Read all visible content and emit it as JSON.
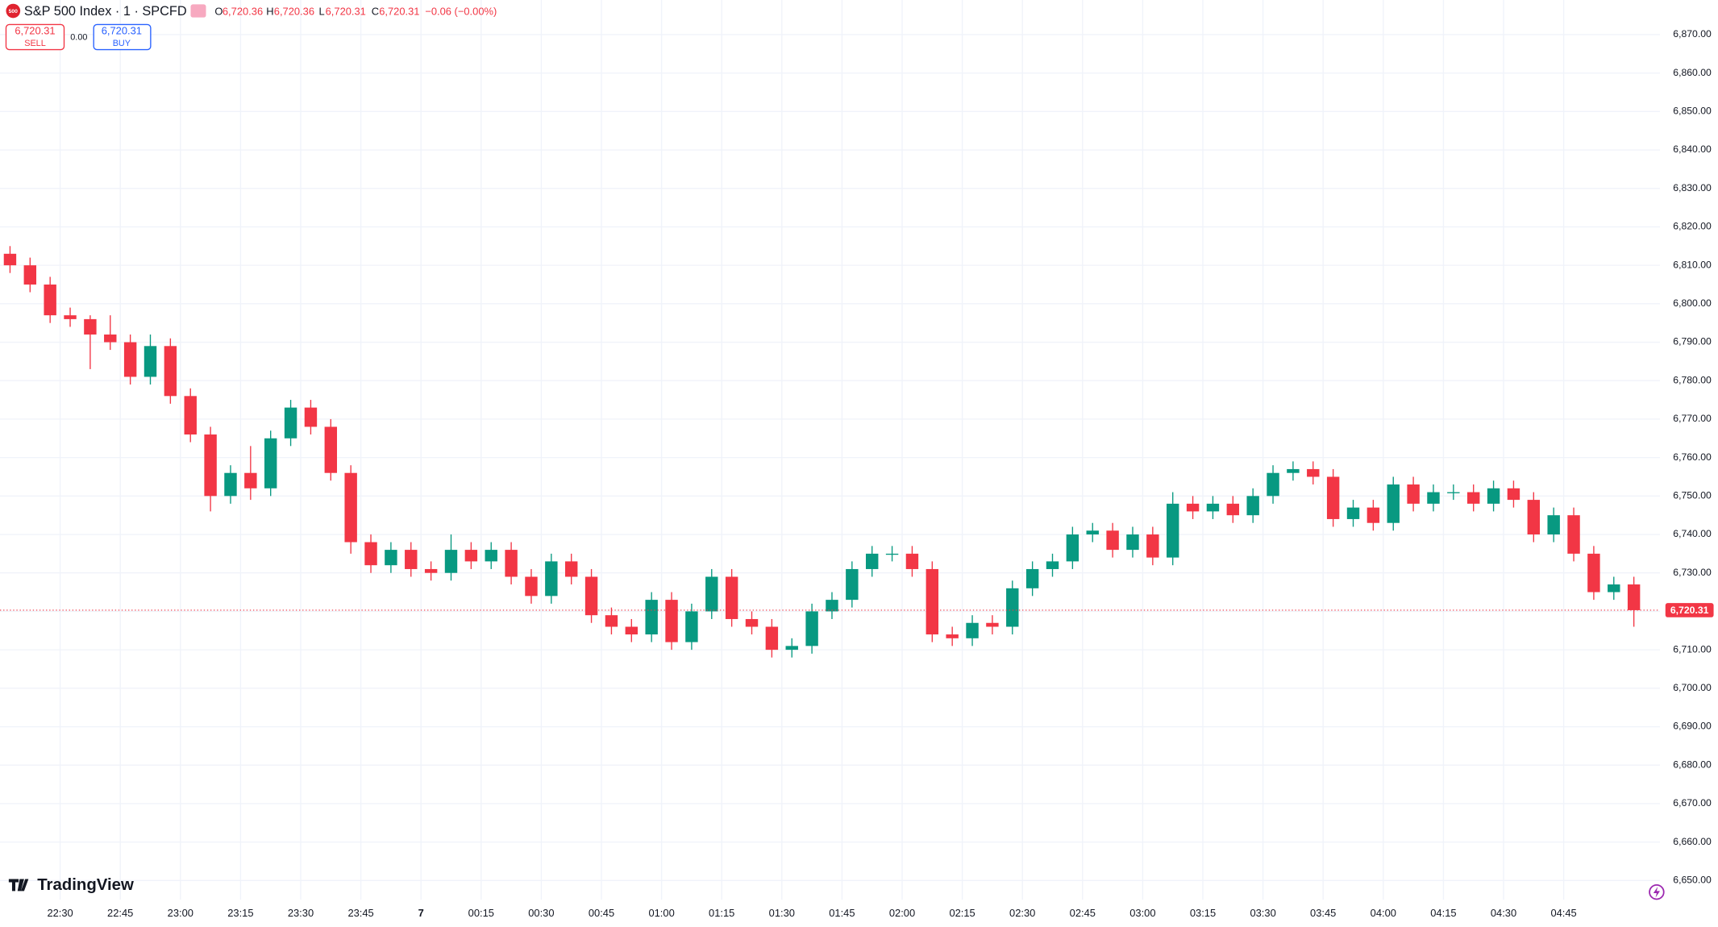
{
  "header": {
    "logo": "500",
    "title": "S&P 500 Index · 1 · SPCFD",
    "o_label": "O",
    "o_value": "6,720.36",
    "h_label": "H",
    "h_value": "6,720.36",
    "l_label": "L",
    "l_value": "6,720.31",
    "c_label": "C",
    "c_value": "6,720.31",
    "change": "−0.06 (−0.00%)",
    "sell_price": "6,720.31",
    "sell_label": "SELL",
    "spread": "0.00",
    "buy_price": "6,720.31",
    "buy_label": "BUY"
  },
  "branding": "TradingView",
  "chart_data": {
    "type": "candlestick",
    "up_color": "#089981",
    "down_color": "#f23645",
    "grid": true,
    "xlim": [
      "22:15",
      "05:09"
    ],
    "ylim": [
      6645,
      6879
    ],
    "x": [
      "22:15",
      "22:20",
      "22:25",
      "22:30",
      "22:35",
      "22:40",
      "22:45",
      "22:50",
      "22:55",
      "23:00",
      "23:05",
      "23:10",
      "23:15",
      "23:20",
      "23:25",
      "23:30",
      "23:35",
      "23:40",
      "23:45",
      "23:50",
      "23:55",
      "00:00",
      "00:05",
      "00:10",
      "00:15",
      "00:20",
      "00:25",
      "00:30",
      "00:35",
      "00:40",
      "00:45",
      "00:50",
      "00:55",
      "01:00",
      "01:05",
      "01:10",
      "01:15",
      "01:20",
      "01:25",
      "01:30",
      "01:35",
      "01:40",
      "01:45",
      "01:50",
      "01:55",
      "02:00",
      "02:05",
      "02:10",
      "02:15",
      "02:20",
      "02:25",
      "02:30",
      "02:35",
      "02:40",
      "02:45",
      "02:50",
      "02:55",
      "03:00",
      "03:05",
      "03:10",
      "03:15",
      "03:20",
      "03:25",
      "03:30",
      "03:35",
      "03:40",
      "03:45",
      "03:50",
      "03:55",
      "04:00",
      "04:05",
      "04:10",
      "04:15",
      "04:20",
      "04:25",
      "04:30",
      "04:35",
      "04:40",
      "04:45",
      "04:50",
      "04:55",
      "05:00"
    ],
    "open": [
      6813,
      6810,
      6805,
      6797,
      6796,
      6792,
      6790,
      6781,
      6789,
      6776,
      6766,
      6750,
      6756,
      6752,
      6765,
      6773,
      6768,
      6756,
      6738,
      6732,
      6736,
      6731,
      6730,
      6736,
      6733,
      6736,
      6729,
      6724,
      6733,
      6729,
      6719,
      6716,
      6714,
      6723,
      6712,
      6720,
      6729,
      6718,
      6716,
      6710,
      6711,
      6720,
      6723,
      6731,
      6735,
      6735,
      6731,
      6714,
      6713,
      6717,
      6716,
      6726,
      6731,
      6733,
      6740,
      6741,
      6736,
      6740,
      6734,
      6748,
      6746,
      6748,
      6745,
      6750,
      6756,
      6757,
      6755,
      6744,
      6747,
      6743,
      6753,
      6748,
      6751,
      6751,
      6748,
      6752,
      6749,
      6740,
      6745,
      6735,
      6725,
      6727
    ],
    "high": [
      6815,
      6812,
      6807,
      6799,
      6797,
      6797,
      6792,
      6792,
      6791,
      6778,
      6768,
      6758,
      6763,
      6767,
      6775,
      6775,
      6770,
      6758,
      6740,
      6738,
      6738,
      6733,
      6740,
      6738,
      6738,
      6738,
      6731,
      6735,
      6735,
      6731,
      6721,
      6718,
      6725,
      6725,
      6722,
      6731,
      6731,
      6720,
      6718,
      6713,
      6722,
      6725,
      6733,
      6737,
      6737,
      6737,
      6733,
      6716,
      6719,
      6719,
      6728,
      6733,
      6735,
      6742,
      6743,
      6743,
      6742,
      6742,
      6751,
      6750,
      6750,
      6750,
      6752,
      6758,
      6759,
      6759,
      6757,
      6749,
      6749,
      6755,
      6755,
      6753,
      6753,
      6753,
      6754,
      6754,
      6751,
      6747,
      6747,
      6737,
      6729,
      6729
    ],
    "low": [
      6808,
      6803,
      6795,
      6794,
      6783,
      6788,
      6779,
      6779,
      6774,
      6764,
      6746,
      6748,
      6749,
      6750,
      6763,
      6766,
      6754,
      6735,
      6730,
      6730,
      6729,
      6728,
      6728,
      6731,
      6731,
      6727,
      6722,
      6722,
      6727,
      6717,
      6714,
      6712,
      6712,
      6710,
      6710,
      6718,
      6716,
      6714,
      6708,
      6708,
      6709,
      6718,
      6721,
      6729,
      6733,
      6729,
      6712,
      6711,
      6711,
      6714,
      6714,
      6724,
      6729,
      6731,
      6738,
      6734,
      6734,
      6732,
      6732,
      6744,
      6744,
      6743,
      6743,
      6748,
      6754,
      6753,
      6742,
      6742,
      6741,
      6741,
      6746,
      6746,
      6749,
      6746,
      6746,
      6747,
      6738,
      6738,
      6733,
      6723,
      6723,
      6716
    ],
    "close": [
      6810,
      6805,
      6797,
      6796,
      6792,
      6790,
      6781,
      6789,
      6776,
      6766,
      6750,
      6756,
      6752,
      6765,
      6773,
      6768,
      6756,
      6738,
      6732,
      6736,
      6731,
      6730,
      6736,
      6733,
      6736,
      6729,
      6724,
      6733,
      6729,
      6719,
      6716,
      6714,
      6723,
      6712,
      6720,
      6729,
      6718,
      6716,
      6710,
      6711,
      6720,
      6723,
      6731,
      6735,
      6735,
      6731,
      6714,
      6713,
      6717,
      6716,
      6726,
      6731,
      6733,
      6740,
      6741,
      6736,
      6740,
      6734,
      6748,
      6746,
      6748,
      6745,
      6750,
      6756,
      6757,
      6755,
      6744,
      6747,
      6743,
      6753,
      6748,
      6751,
      6751,
      6748,
      6752,
      6749,
      6740,
      6745,
      6735,
      6725,
      6727,
      6720.31
    ],
    "price_line": {
      "value": 6720.31,
      "label": "6,720.31"
    },
    "xticks": [
      "22:30",
      "22:45",
      "23:00",
      "23:15",
      "23:30",
      "23:45",
      {
        "value": "00:00",
        "label": "7"
      },
      "00:15",
      "00:30",
      "00:45",
      "01:00",
      "01:15",
      "01:30",
      "01:45",
      "02:00",
      "02:15",
      "02:30",
      "02:45",
      "03:00",
      "03:15",
      "03:30",
      "03:45",
      "04:00",
      "04:15",
      "04:30",
      "04:45"
    ],
    "yticks": [
      {
        "value": 6650,
        "label": "6,650.00"
      },
      {
        "value": 6660,
        "label": "6,660.00"
      },
      {
        "value": 6670,
        "label": "6,670.00"
      },
      {
        "value": 6680,
        "label": "6,680.00"
      },
      {
        "value": 6690,
        "label": "6,690.00"
      },
      {
        "value": 6700,
        "label": "6,700.00"
      },
      {
        "value": 6710,
        "label": "6,710.00"
      },
      {
        "value": 6720,
        "label": "6,720.00"
      },
      {
        "value": 6730,
        "label": "6,730.00"
      },
      {
        "value": 6740,
        "label": "6,740.00"
      },
      {
        "value": 6750,
        "label": "6,750.00"
      },
      {
        "value": 6760,
        "label": "6,760.00"
      },
      {
        "value": 6770,
        "label": "6,770.00"
      },
      {
        "value": 6780,
        "label": "6,780.00"
      },
      {
        "value": 6790,
        "label": "6,790.00"
      },
      {
        "value": 6800,
        "label": "6,800.00"
      },
      {
        "value": 6810,
        "label": "6,810.00"
      },
      {
        "value": 6820,
        "label": "6,820.00"
      },
      {
        "value": 6830,
        "label": "6,830.00"
      },
      {
        "value": 6840,
        "label": "6,840.00"
      },
      {
        "value": 6850,
        "label": "6,850.00"
      },
      {
        "value": 6860,
        "label": "6,860.00"
      },
      {
        "value": 6870,
        "label": "6,870.00"
      }
    ]
  }
}
